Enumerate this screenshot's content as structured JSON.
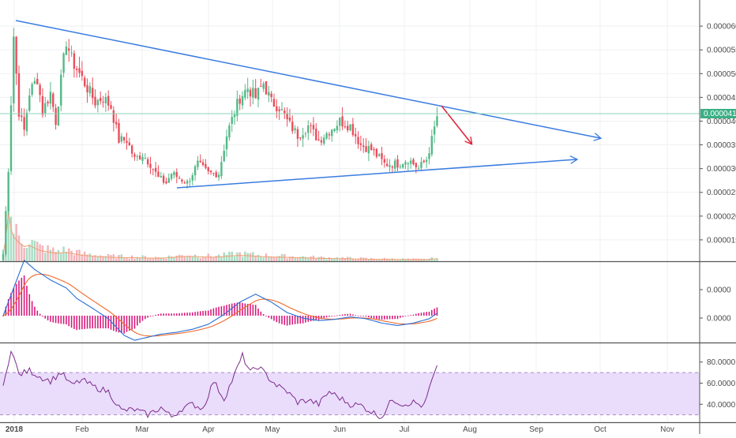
{
  "chart_data": {
    "type": "candlestick",
    "title": "",
    "colors": {
      "up": "#53b987",
      "down": "#eb4d5c",
      "trendline": "#3a7ce0",
      "arrow_down": "#e02035",
      "macd": "#2a6fd6",
      "signal": "#f06a2a",
      "histogram": "#d81b7c",
      "rsi": "#7b2d8b",
      "rsi_band": "#eadcfb",
      "volume_ma": "#f0a070",
      "last_price_badge": "#3aaf85"
    },
    "x_ticks": [
      "2018",
      "Feb",
      "Mar",
      "Apr",
      "May",
      "Jun",
      "Jul",
      "Aug",
      "Sep",
      "Oct",
      "Nov"
    ],
    "price_axis": {
      "ticks": [
        "0.00006000",
        "0.00005500",
        "0.00005000",
        "0.00004500",
        "0.00004000",
        "0.00003500",
        "0.00003000",
        "0.00002500",
        "0.00002000",
        "0.00001500"
      ],
      "ylim": [
        1.05e-05,
        6.55e-05
      ],
      "last_price": "0.00004119"
    },
    "macd_axis": {
      "ticks": [
        "0.0000",
        "0.0000"
      ]
    },
    "rsi_axis": {
      "ticks": [
        "80.0000",
        "60.0000",
        "40.0000"
      ],
      "ylim": [
        23,
        97
      ],
      "band": [
        30,
        70
      ]
    },
    "anchor_closes": [
      [
        0,
        1.2e-05
      ],
      [
        2,
        3e-05
      ],
      [
        4,
        5.8e-05
      ],
      [
        6,
        4.2e-05
      ],
      [
        8,
        3.8e-05
      ],
      [
        10,
        4.6e-05
      ],
      [
        13,
        4.9e-05
      ],
      [
        15,
        4.2e-05
      ],
      [
        18,
        4.6e-05
      ],
      [
        20,
        4e-05
      ],
      [
        24,
        5.7e-05
      ],
      [
        26,
        5.3e-05
      ],
      [
        29,
        5e-05
      ],
      [
        32,
        4.7e-05
      ],
      [
        35,
        4.4e-05
      ],
      [
        38,
        4.5e-05
      ],
      [
        41,
        4.3e-05
      ],
      [
        44,
        3.6e-05
      ],
      [
        47,
        3.6e-05
      ],
      [
        50,
        3.2e-05
      ],
      [
        53,
        3.3e-05
      ],
      [
        56,
        3.1e-05
      ],
      [
        59,
        2.8e-05
      ],
      [
        62,
        2.7e-05
      ],
      [
        64,
        2.9e-05
      ],
      [
        67,
        2.8e-05
      ],
      [
        70,
        2.7e-05
      ],
      [
        74,
        3.1e-05
      ],
      [
        78,
        2.9e-05
      ],
      [
        82,
        2.9e-05
      ],
      [
        85,
        3.7e-05
      ],
      [
        88,
        4.2e-05
      ],
      [
        90,
        4.5e-05
      ],
      [
        93,
        4.7e-05
      ],
      [
        96,
        4.5e-05
      ],
      [
        99,
        4.8e-05
      ],
      [
        102,
        4.4e-05
      ],
      [
        105,
        4.3e-05
      ],
      [
        108,
        4e-05
      ],
      [
        112,
        3.7e-05
      ],
      [
        116,
        3.9e-05
      ],
      [
        120,
        3.6e-05
      ],
      [
        124,
        3.8e-05
      ],
      [
        128,
        4e-05
      ],
      [
        132,
        3.9e-05
      ],
      [
        136,
        3.5e-05
      ],
      [
        140,
        3.4e-05
      ],
      [
        145,
        3.1e-05
      ],
      [
        150,
        3.1e-05
      ],
      [
        154,
        3.2e-05
      ],
      [
        158,
        3e-05
      ],
      [
        161,
        3.2e-05
      ],
      [
        163,
        3.6e-05
      ],
      [
        165,
        4.1e-05
      ]
    ],
    "rsi_anchors": [
      [
        0,
        55
      ],
      [
        3,
        93
      ],
      [
        6,
        68
      ],
      [
        10,
        72
      ],
      [
        14,
        66
      ],
      [
        18,
        62
      ],
      [
        22,
        70
      ],
      [
        26,
        58
      ],
      [
        30,
        63
      ],
      [
        35,
        56
      ],
      [
        40,
        52
      ],
      [
        45,
        34
      ],
      [
        50,
        35
      ],
      [
        55,
        30
      ],
      [
        60,
        37
      ],
      [
        64,
        28
      ],
      [
        68,
        36
      ],
      [
        72,
        40
      ],
      [
        76,
        36
      ],
      [
        80,
        62
      ],
      [
        84,
        45
      ],
      [
        88,
        68
      ],
      [
        91,
        86
      ],
      [
        94,
        70
      ],
      [
        97,
        76
      ],
      [
        101,
        65
      ],
      [
        104,
        58
      ],
      [
        108,
        52
      ],
      [
        112,
        42
      ],
      [
        116,
        44
      ],
      [
        120,
        40
      ],
      [
        124,
        52
      ],
      [
        128,
        46
      ],
      [
        132,
        40
      ],
      [
        136,
        39
      ],
      [
        140,
        33
      ],
      [
        144,
        28
      ],
      [
        148,
        45
      ],
      [
        152,
        40
      ],
      [
        156,
        42
      ],
      [
        160,
        38
      ],
      [
        163,
        62
      ],
      [
        165,
        74
      ]
    ],
    "macd_anchors": [
      [
        0,
        0.0
      ],
      [
        4,
        0.45
      ],
      [
        8,
        0.9
      ],
      [
        12,
        0.75
      ],
      [
        18,
        0.58
      ],
      [
        24,
        0.45
      ],
      [
        28,
        0.28
      ],
      [
        34,
        0.12
      ],
      [
        40,
        -0.05
      ],
      [
        46,
        -0.32
      ],
      [
        50,
        -0.4
      ],
      [
        54,
        -0.36
      ],
      [
        60,
        -0.3
      ],
      [
        66,
        -0.27
      ],
      [
        72,
        -0.22
      ],
      [
        78,
        -0.14
      ],
      [
        84,
        0.02
      ],
      [
        90,
        0.22
      ],
      [
        96,
        0.35
      ],
      [
        102,
        0.22
      ],
      [
        108,
        0.05
      ],
      [
        114,
        -0.04
      ],
      [
        120,
        -0.08
      ],
      [
        126,
        -0.06
      ],
      [
        132,
        -0.02
      ],
      [
        138,
        -0.05
      ],
      [
        144,
        -0.12
      ],
      [
        150,
        -0.16
      ],
      [
        156,
        -0.12
      ],
      [
        162,
        -0.05
      ],
      [
        165,
        0.04
      ]
    ],
    "volume_anchors": [
      [
        0,
        0.15
      ],
      [
        1,
        0.45
      ],
      [
        2,
        1.0
      ],
      [
        3,
        0.65
      ],
      [
        4,
        0.5
      ],
      [
        6,
        0.38
      ],
      [
        8,
        0.3
      ],
      [
        10,
        0.32
      ],
      [
        14,
        0.22
      ],
      [
        20,
        0.16
      ],
      [
        24,
        0.18
      ],
      [
        30,
        0.12
      ],
      [
        40,
        0.08
      ],
      [
        60,
        0.06
      ],
      [
        70,
        0.1
      ],
      [
        80,
        0.08
      ],
      [
        90,
        0.12
      ],
      [
        100,
        0.09
      ],
      [
        120,
        0.06
      ],
      [
        140,
        0.04
      ],
      [
        160,
        0.03
      ],
      [
        165,
        0.05
      ]
    ]
  }
}
